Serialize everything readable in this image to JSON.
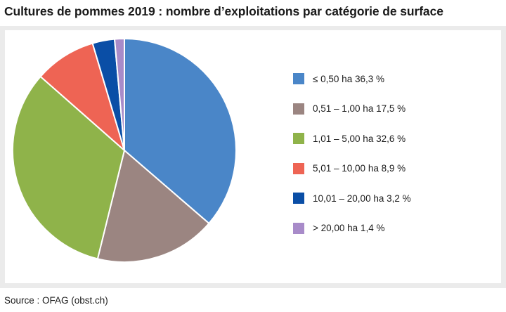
{
  "title": "Cultures de pommes 2019 : nombre d’exploitations par catégorie de surface",
  "source": "Source : OFAG (obst.ch)",
  "chart_data": {
    "type": "pie",
    "title": "Cultures de pommes 2019 : nombre d’exploitations par catégorie de surface",
    "legend_placement": "right",
    "start_angle": "12 o'clock, clockwise",
    "categories": [
      "≤ 0,50 ha",
      "0,51 – 1,00 ha",
      "1,01 – 5,00 ha",
      "5,01 – 10,00 ha",
      "10,01 – 20,00 ha",
      "> 20,00 ha"
    ],
    "values": [
      36.3,
      17.5,
      32.6,
      8.9,
      3.2,
      1.4
    ],
    "unit": "%",
    "legend_labels": [
      "≤ 0,50 ha 36,3 %",
      "0,51 – 1,00 ha 17,5 %",
      "1,01 – 5,00 ha 32,6 %",
      "5,01 – 10,00 ha 8,9 %",
      "10,01 – 20,00 ha 3,2 %",
      "> 20,00 ha 1,4 %"
    ],
    "colors": [
      "#4a86c8",
      "#9b8581",
      "#8fb34a",
      "#ee6454",
      "#0a4ea6",
      "#a88bc9"
    ]
  }
}
